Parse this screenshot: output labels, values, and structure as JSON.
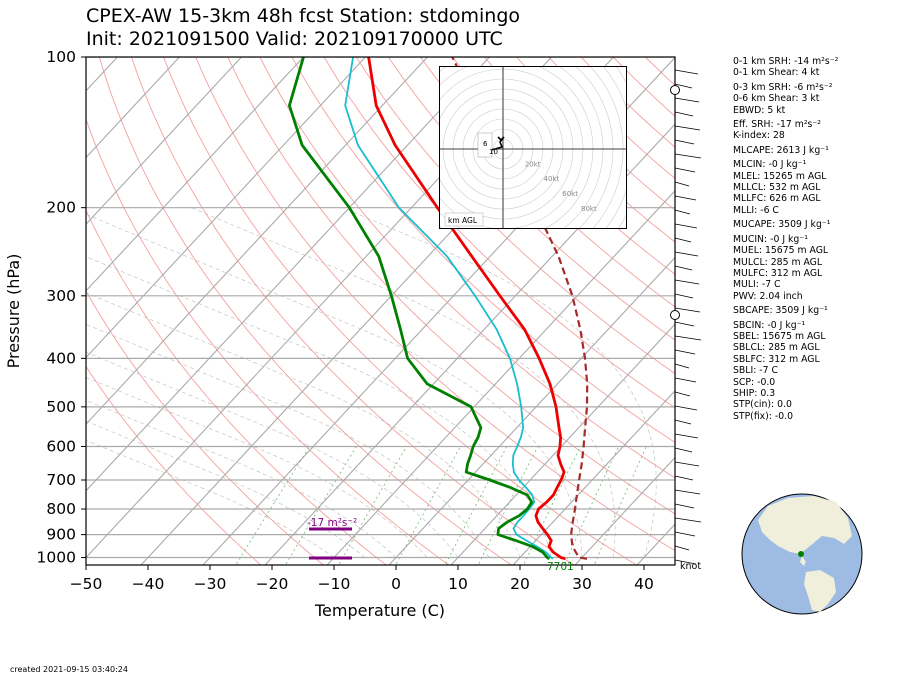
{
  "title": {
    "line1": "CPEX-AW 15-3km  48h fcst  Station: stdomingo",
    "line2": "Init: 2021091500  Valid: 202109170000 UTC"
  },
  "colors": {
    "temperature": "#ee0000",
    "dewpoint": "#008000",
    "wetbulb": "#17becf",
    "parcel": "#a52a2a",
    "isotherm": "#aaaaaa",
    "dry_adiabat": "#f4a0a0",
    "mixing_ratio": "#7fbf7f",
    "srh_bar": "#800080"
  },
  "chart_data": {
    "type": "skew-t",
    "xlabel": "Temperature (C)",
    "ylabel": "Pressure (hPa)",
    "xlim": [
      -50,
      45
    ],
    "ylim": [
      1035,
      100
    ],
    "y_scale": "log",
    "x_ticks": [
      "−50",
      "−40",
      "−30",
      "−20",
      "−10",
      "0",
      "10",
      "20",
      "30",
      "40"
    ],
    "x_tick_values": [
      -50,
      -40,
      -30,
      -20,
      -10,
      0,
      10,
      20,
      30,
      40
    ],
    "y_ticks": [
      "100",
      "200",
      "300",
      "400",
      "500",
      "600",
      "700",
      "800",
      "900",
      "1000"
    ],
    "y_tick_values": [
      100,
      200,
      300,
      400,
      500,
      600,
      700,
      800,
      900,
      1000
    ],
    "grid": true,
    "series": [
      {
        "key": "temperature",
        "pressure": [
          1006,
          1000,
          975,
          950,
          925,
          900,
          875,
          850,
          825,
          800,
          775,
          750,
          725,
          700,
          675,
          650,
          625,
          600,
          575,
          550,
          500,
          450,
          400,
          350,
          300,
          250,
          200,
          150,
          125,
          100
        ],
        "values": [
          27.5,
          26.6,
          24.5,
          23.0,
          22.5,
          21.0,
          19.3,
          17.6,
          16.3,
          15.7,
          16.0,
          16.0,
          15.5,
          15.0,
          14.3,
          12.5,
          10.8,
          9.8,
          8.5,
          6.8,
          3.2,
          -1.2,
          -6.8,
          -13.5,
          -22.5,
          -33.0,
          -45.8,
          -62.0,
          -71.0,
          -79.5
        ]
      },
      {
        "key": "dewpoint",
        "pressure": [
          1006,
          1000,
          975,
          950,
          925,
          900,
          875,
          850,
          825,
          800,
          775,
          750,
          725,
          700,
          675,
          650,
          625,
          600,
          575,
          550,
          500,
          450,
          400,
          350,
          300,
          250,
          200,
          150,
          125,
          100
        ],
        "values": [
          24.9,
          24.4,
          22.8,
          20.3,
          16.8,
          13.0,
          12.2,
          12.6,
          13.6,
          13.9,
          13.6,
          11.8,
          8.0,
          3.5,
          -1.5,
          -2.5,
          -3.3,
          -4.2,
          -4.8,
          -5.8,
          -10.5,
          -21.0,
          -28.0,
          -33.5,
          -40.0,
          -48.0,
          -60.0,
          -77.0,
          -85.0,
          -90.0
        ]
      },
      {
        "key": "wetbulb",
        "pressure": [
          1006,
          1000,
          975,
          950,
          925,
          900,
          875,
          850,
          825,
          800,
          775,
          750,
          725,
          700,
          675,
          650,
          625,
          600,
          575,
          550,
          500,
          450,
          400,
          350,
          300,
          250,
          200,
          150,
          125,
          100
        ],
        "values": [
          25.5,
          25.0,
          23.3,
          21.0,
          18.5,
          16.0,
          14.6,
          14.3,
          14.3,
          14.2,
          14.0,
          12.6,
          10.5,
          8.2,
          6.2,
          4.8,
          3.6,
          2.9,
          2.1,
          1.0,
          -2.4,
          -6.5,
          -11.5,
          -18.0,
          -26.5,
          -37.0,
          -52.0,
          -68.0,
          -76.0,
          -82.0
        ]
      },
      {
        "key": "parcel",
        "pressure": [
          1006,
          1000,
          950,
          900,
          850,
          800,
          750,
          700,
          650,
          600,
          550,
          500,
          450,
          400,
          350,
          300,
          250,
          200,
          150,
          125,
          100
        ],
        "values": [
          31.0,
          29.5,
          26.8,
          24.8,
          23.2,
          21.6,
          19.8,
          17.9,
          15.9,
          13.6,
          11.0,
          8.2,
          4.8,
          0.6,
          -4.5,
          -10.8,
          -19.0,
          -30.0,
          -45.0,
          -55.0,
          -66.0
        ]
      }
    ],
    "annotations": {
      "srh_label": "-17 m²s⁻²",
      "surface_label": "7701",
      "knot_label": "knot"
    },
    "hodograph": {
      "label": "km AGL",
      "ring_labels": [
        "20kt",
        "40kt",
        "60kt",
        "80kt"
      ],
      "height_labels": [
        "6",
        "10"
      ]
    }
  },
  "indices": [
    {
      "text": "0-1 km SRH: -14 m²s⁻²"
    },
    {
      "text": "0-1 km Shear: 4 kt"
    },
    {
      "text": "0-3 km SRH: -6 m²s⁻²"
    },
    {
      "text": "0-6 km Shear: 3 kt"
    },
    {
      "text": "EBWD: 5 kt"
    },
    {
      "text": "Eff. SRH: -17 m²s⁻²"
    },
    {
      "text": "K-index: 28"
    },
    {
      "text": "MLCAPE: 2613 J kg⁻¹"
    },
    {
      "text": "MLCIN: -0 J kg⁻¹"
    },
    {
      "text": "MLEL: 15265 m AGL"
    },
    {
      "text": "MLLCL: 532 m AGL"
    },
    {
      "text": "MLLFC: 626 m AGL"
    },
    {
      "text": "MLLI: -6 C"
    },
    {
      "text": "MUCAPE: 3509 J kg⁻¹"
    },
    {
      "text": "MUCIN: -0 J kg⁻¹"
    },
    {
      "text": "MUEL: 15675 m AGL"
    },
    {
      "text": "MULCL: 285 m AGL"
    },
    {
      "text": "MULFC: 312 m AGL"
    },
    {
      "text": "MULI: -7 C"
    },
    {
      "text": "PWV: 2.04 inch"
    },
    {
      "text": "SBCAPE: 3509 J kg⁻¹"
    },
    {
      "text": "SBCIN: -0 J kg⁻¹"
    },
    {
      "text": "SBEL: 15675 m AGL"
    },
    {
      "text": "SBLCL: 285 m AGL"
    },
    {
      "text": "SBLFC: 312 m AGL"
    },
    {
      "text": "SBLI: -7 C"
    },
    {
      "text": "SCP: -0.0"
    },
    {
      "text": "SHIP: 0.3"
    },
    {
      "text": "STP(cin): 0.0"
    },
    {
      "text": "STP(fix): -0.0"
    }
  ],
  "footer": "created 2021-09-15 03:40:24"
}
